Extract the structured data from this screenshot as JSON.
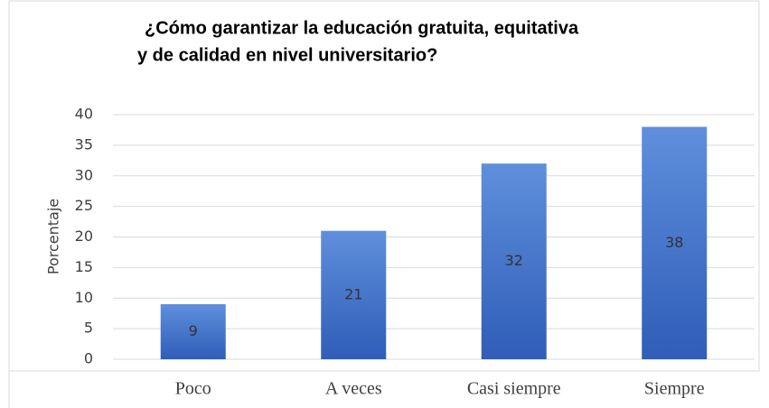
{
  "chart_data": {
    "type": "bar",
    "title": [
      "¿Cómo garantizar la educación  gratuita, equitativa",
      "y de calidad en nivel universitario?"
    ],
    "y_label": "Porcentaje",
    "categories": [
      "Poco",
      "A veces",
      "Casi siempre",
      "Siempre"
    ],
    "values": [
      9,
      21,
      32,
      38
    ],
    "color": "#4472c4",
    "ylim": [
      0,
      40
    ],
    "yticks": [
      0,
      5,
      10,
      15,
      20,
      25,
      30,
      35,
      40
    ],
    "grid": true
  }
}
